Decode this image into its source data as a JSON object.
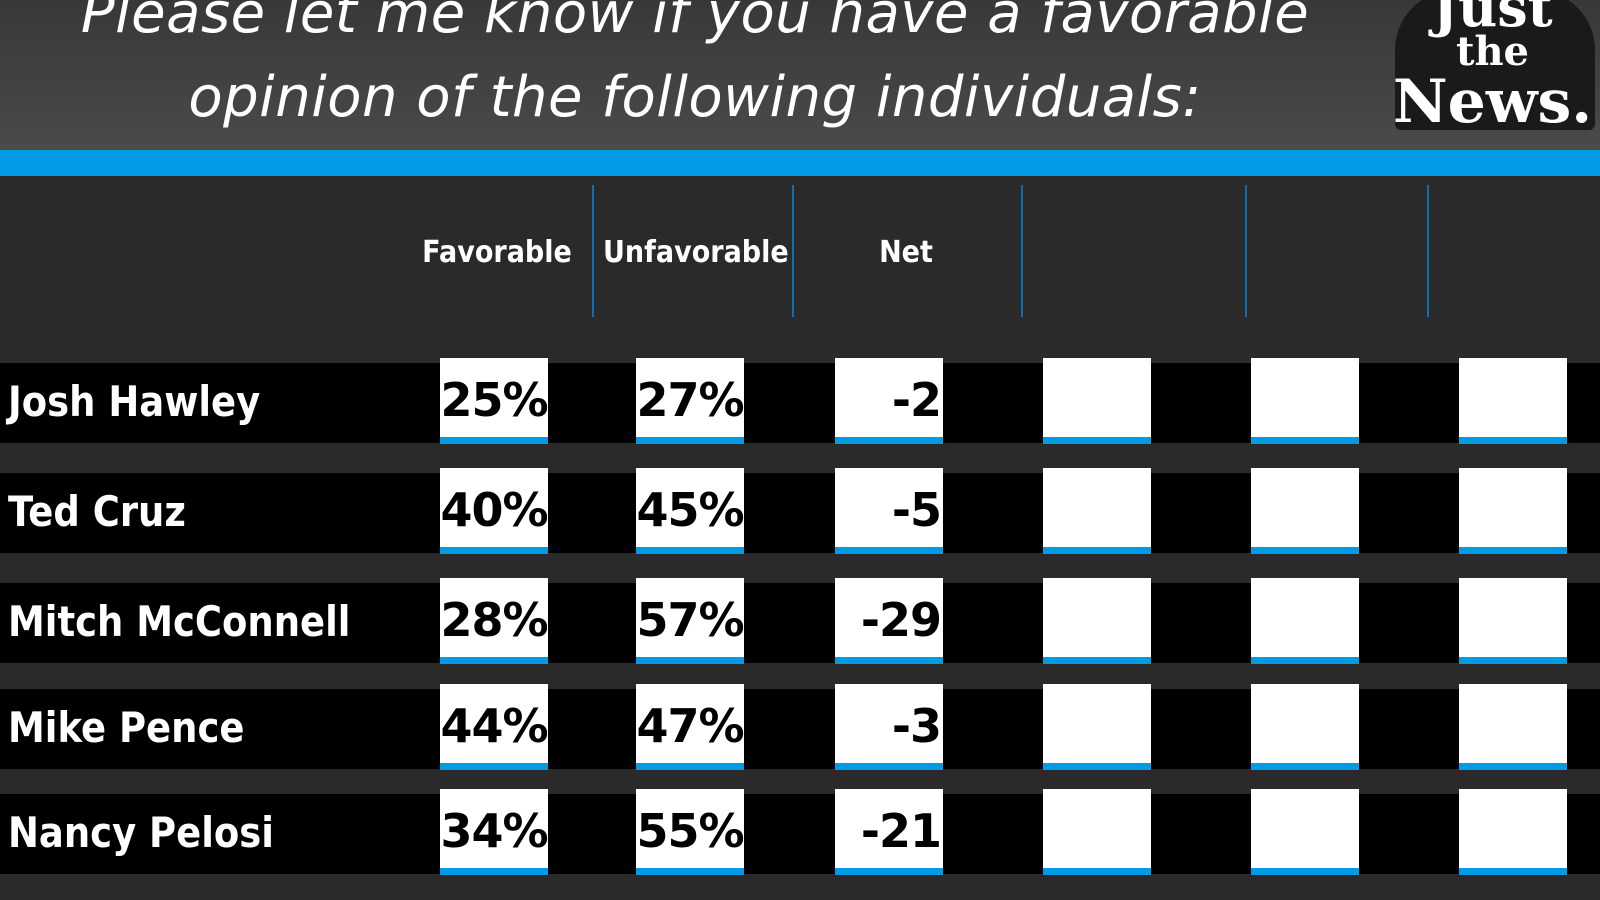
{
  "header": {
    "title_line1": "Please let me know if you have a favorable",
    "title_line2": "opinion of the following individuals:"
  },
  "logo": {
    "line1": "Just",
    "line2": "the",
    "line3": "News."
  },
  "colors": {
    "accent": "#039be5",
    "cell": "#ffffff",
    "row": "#000000",
    "background": "#2a2a2a"
  },
  "chart_data": {
    "type": "table",
    "title": "Please let me know if you have a favorable opinion of the following individuals:",
    "columns": [
      "Favorable",
      "Unfavorable",
      "Net",
      "",
      "",
      ""
    ],
    "rows": [
      {
        "name": "Josh Hawley",
        "favorable": "25%",
        "unfavorable": "27%",
        "net": "-2"
      },
      {
        "name": "Ted Cruz",
        "favorable": "40%",
        "unfavorable": "45%",
        "net": "-5"
      },
      {
        "name": "Mitch McConnell",
        "favorable": "28%",
        "unfavorable": "57%",
        "net": "-29"
      },
      {
        "name": "Mike Pence",
        "favorable": "44%",
        "unfavorable": "47%",
        "net": "-3"
      },
      {
        "name": "Nancy Pelosi",
        "favorable": "34%",
        "unfavorable": "55%",
        "net": "-21"
      }
    ]
  }
}
